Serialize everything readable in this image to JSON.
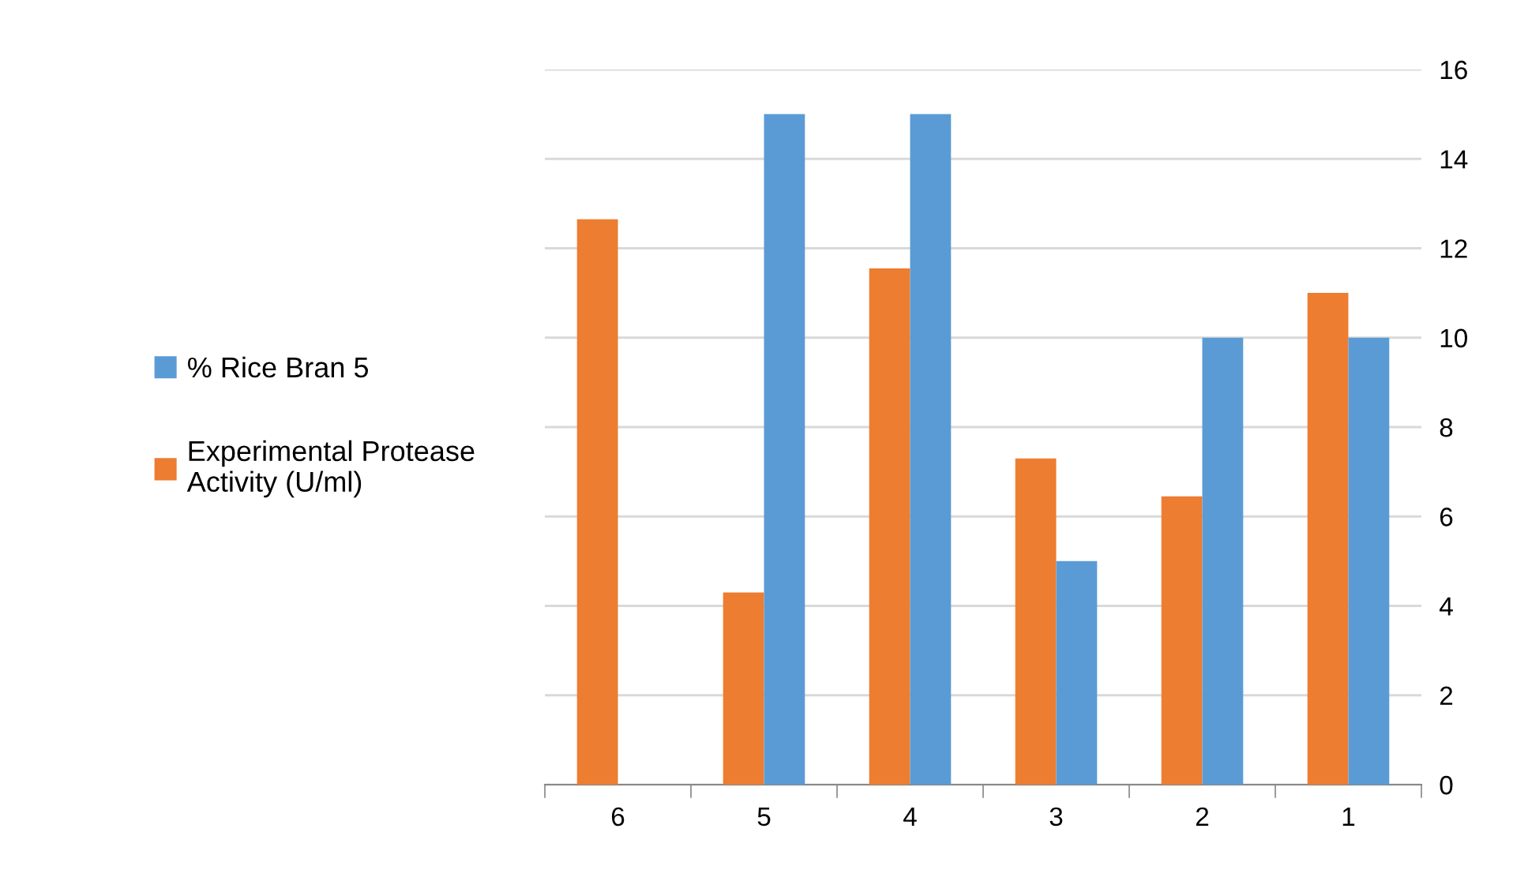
{
  "chart_data": {
    "type": "bar",
    "categories": [
      "6",
      "5",
      "4",
      "3",
      "2",
      "1"
    ],
    "series": [
      {
        "name": "Experimental Protease Activity (U/ml)",
        "color": "#ed7d31",
        "values": [
          12.65,
          4.3,
          11.55,
          7.3,
          6.45,
          11.0
        ]
      },
      {
        "name": "% Rice Bran 5",
        "color": "#5b9bd5",
        "values": [
          null,
          15,
          15,
          5,
          10,
          10
        ]
      }
    ],
    "ylim": [
      0,
      16
    ],
    "yticks": [
      0,
      2,
      4,
      6,
      8,
      10,
      12,
      14,
      16
    ],
    "grid": "y",
    "legend": "left"
  }
}
